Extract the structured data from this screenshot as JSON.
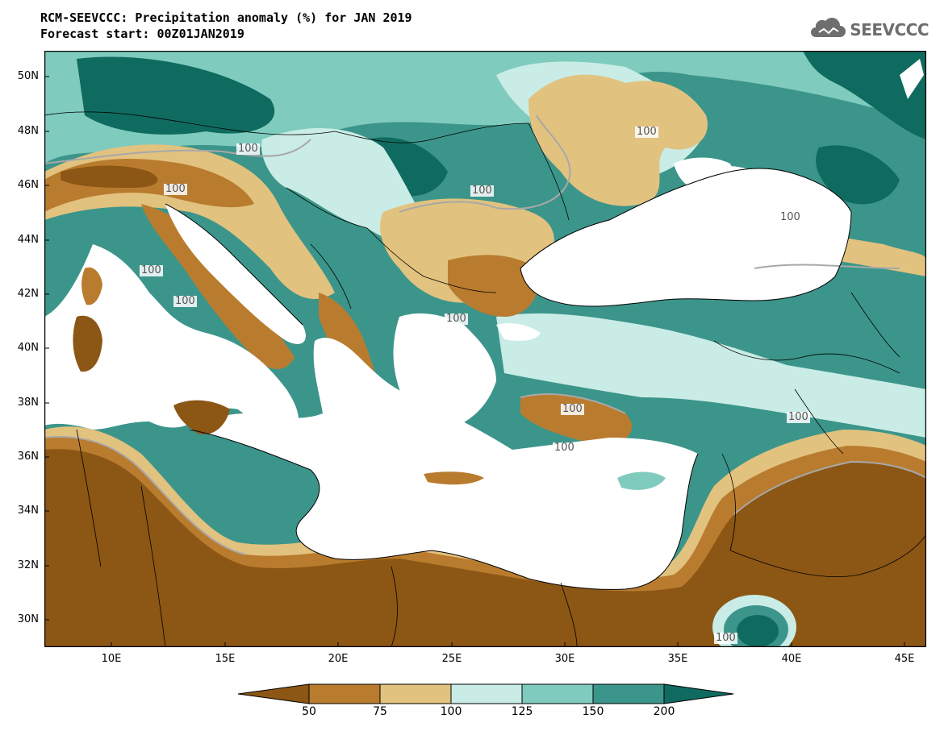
{
  "header": {
    "title_line1": "RCM-SEEVCCC: Precipitation anomaly (%) for JAN 2019",
    "title_line2": "Forecast start: 00Z01JAN2019"
  },
  "logo": {
    "text": "SEEVCCC",
    "icon": "cloud-icon"
  },
  "map": {
    "lat_labels": [
      "50N",
      "48N",
      "46N",
      "44N",
      "42N",
      "40N",
      "38N",
      "36N",
      "34N",
      "32N",
      "30N"
    ],
    "lon_labels": [
      "10E",
      "15E",
      "20E",
      "25E",
      "30E",
      "35E",
      "40E",
      "45E"
    ],
    "contour_labels": [
      "100",
      "100",
      "100",
      "100",
      "100",
      "100",
      "100",
      "100",
      "100",
      "100",
      "100",
      "100"
    ],
    "ocean_color": "#ffffff"
  },
  "legend": {
    "colors": [
      "#8c5614",
      "#b97c2f",
      "#e2c27f",
      "#c9ece6",
      "#7fcbbd",
      "#3c958a",
      "#0f6b60"
    ],
    "labels": [
      "50",
      "75",
      "100",
      "125",
      "150",
      "200"
    ]
  }
}
